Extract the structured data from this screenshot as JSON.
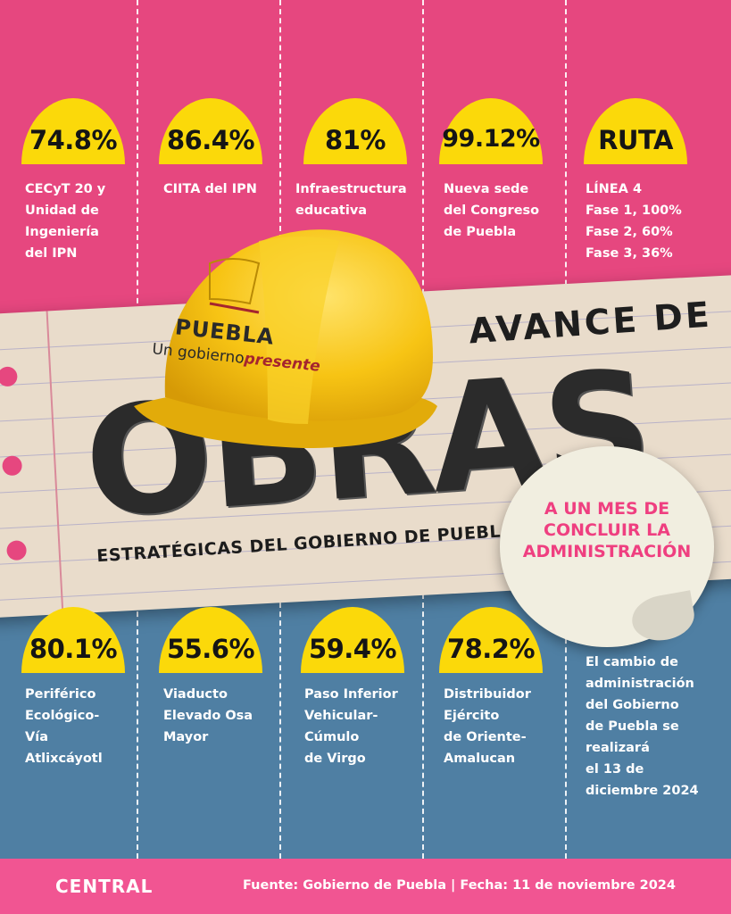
{
  "top_stats": [
    {
      "value": "74.8%",
      "label": "CECyT 20 y\nUnidad de\nIngeniería\ndel IPN"
    },
    {
      "value": "86.4%",
      "label": "CIITA del IPN"
    },
    {
      "value": "81%",
      "label": "Infraestructura\neducativa"
    },
    {
      "value": "99.12%",
      "label": "Nueva sede\ndel Congreso\nde Puebla"
    },
    {
      "value": "RUTA",
      "label": "LÍNEA 4\nFase 1, 100%\nFase 2, 60%\nFase 3, 36%"
    }
  ],
  "bottom_stats": [
    {
      "value": "80.1%",
      "label": "Periférico\nEcológico-\nVía\nAtlixcáyotl"
    },
    {
      "value": "55.6%",
      "label": "Viaducto\nElevado Osa\nMayor"
    },
    {
      "value": "59.4%",
      "label": "Paso Inferior\nVehicular-\nCúmulo\nde Virgo"
    },
    {
      "value": "78.2%",
      "label": "Distribuidor\nEjército\nde Oriente-\nAmalucan"
    }
  ],
  "note": "El cambio de\nadministración\ndel Gobierno\nde Puebla se\nrealizará\nel 13 de\ndiciembre 2024",
  "title": {
    "line1": "AVANCE DE",
    "line2": "OBRAS",
    "line3": "ESTRATÉGICAS DEL GOBIERNO DE PUEBLA"
  },
  "sticker": "A UN MES DE\nCONCLUIR LA\nADMINISTRACIÓN",
  "helmet": {
    "brand": "PUEBLA",
    "slogan_a": "Un gobierno",
    "slogan_b": "presente"
  },
  "footer": {
    "brand": "CENTRAL",
    "source": "Fuente: Gobierno de Puebla  |  Fecha: 11 de noviembre 2024"
  },
  "colors": {
    "pink": "#e6477f",
    "blue": "#4f7fa3",
    "yellow": "#fbd90a",
    "paper": "#e9dccb"
  }
}
